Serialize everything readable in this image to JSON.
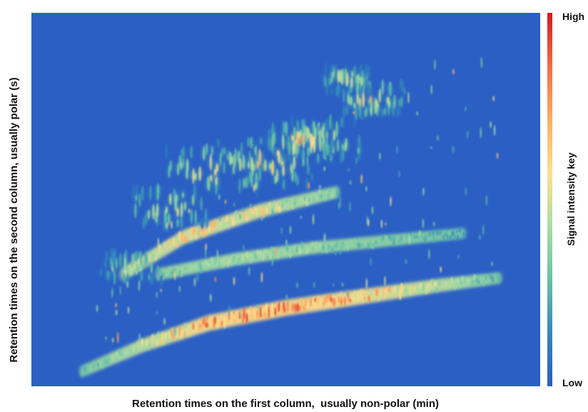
{
  "chart_data": {
    "type": "heatmap",
    "title": "",
    "xlabel": "Retention times on the first column,  usually non-polar (min)",
    "ylabel": "Retention times on the second column, usually polar (s)",
    "colorbar": {
      "label": "Signal intensity key",
      "high_label": "High",
      "low_label": "Low",
      "colors": [
        "#d7191c",
        "#f46d43",
        "#fdae61",
        "#fee08b",
        "#abdda4",
        "#66c2a5",
        "#3288bd",
        "#2b5cc0"
      ]
    },
    "background_color": "#2b5fc4",
    "grid": false,
    "legend": "colorbar-right",
    "x_range": [
      0,
      1
    ],
    "y_range": [
      0,
      1
    ],
    "bands": [
      {
        "name": "",
        "x": [
          0.1,
          0.22,
          0.35,
          0.5,
          0.65,
          0.8,
          0.92
        ],
        "y": [
          0.04,
          0.11,
          0.17,
          0.21,
          0.24,
          0.27,
          0.29
        ],
        "intensity": [
          0.3,
          0.6,
          0.95,
          1.0,
          0.85,
          0.6,
          0.3
        ]
      },
      {
        "name": "",
        "x": [
          0.25,
          0.4,
          0.55,
          0.7,
          0.85
        ],
        "y": [
          0.3,
          0.34,
          0.37,
          0.39,
          0.41
        ],
        "intensity": [
          0.4,
          0.5,
          0.45,
          0.35,
          0.2
        ]
      },
      {
        "name": "",
        "x": [
          0.18,
          0.3,
          0.45,
          0.6
        ],
        "y": [
          0.3,
          0.4,
          0.47,
          0.52
        ],
        "intensity": [
          0.55,
          0.75,
          0.7,
          0.4
        ]
      }
    ],
    "clusters": [
      {
        "x": 0.36,
        "y": 0.58,
        "intensity": 0.85,
        "spread": 0.06
      },
      {
        "x": 0.46,
        "y": 0.6,
        "intensity": 0.9,
        "spread": 0.06
      },
      {
        "x": 0.57,
        "y": 0.66,
        "intensity": 0.8,
        "spread": 0.05
      },
      {
        "x": 0.67,
        "y": 0.77,
        "intensity": 0.85,
        "spread": 0.04
      },
      {
        "x": 0.62,
        "y": 0.82,
        "intensity": 0.75,
        "spread": 0.03
      },
      {
        "x": 0.53,
        "y": 0.66,
        "intensity": 0.9,
        "spread": 0.04
      },
      {
        "x": 0.27,
        "y": 0.48,
        "intensity": 0.75,
        "spread": 0.05
      },
      {
        "x": 0.2,
        "y": 0.32,
        "intensity": 0.6,
        "spread": 0.04
      }
    ]
  }
}
